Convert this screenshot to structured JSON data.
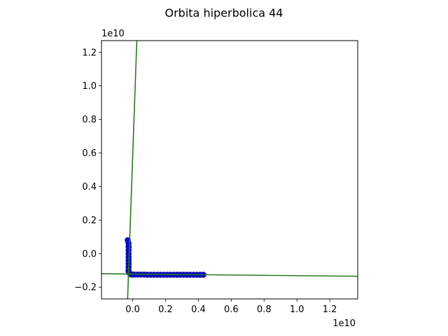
{
  "chart_data": {
    "type": "scatter",
    "title": "Orbita hiperbolica 44",
    "xlabel": "",
    "ylabel": "",
    "x_offset_label": "1e10",
    "y_offset_label": "1e10",
    "xlim": [
      -0.19,
      1.37
    ],
    "ylim": [
      -0.27,
      1.27
    ],
    "x_ticks": [
      0.0,
      0.2,
      0.4,
      0.6,
      0.8,
      1.0,
      1.2
    ],
    "x_tick_labels": [
      "0.0",
      "0.2",
      "0.4",
      "0.6",
      "0.8",
      "1.0",
      "1.2"
    ],
    "y_ticks": [
      -0.2,
      0.0,
      0.2,
      0.4,
      0.6,
      0.8,
      1.0,
      1.2
    ],
    "y_tick_labels": [
      "−0.2",
      "0.0",
      "0.2",
      "0.4",
      "0.6",
      "0.8",
      "1.0",
      "1.2"
    ],
    "grid": false,
    "colors": {
      "points": "#0000cc",
      "point_edge": "#1f1fa0",
      "line": "#2a7a1e",
      "line_dark": "#1e5a10"
    },
    "series": [
      {
        "values": {
          "x": [
            -0.03,
            -0.025,
            -0.025,
            -0.025,
            -0.025,
            -0.025,
            -0.025,
            -0.025,
            -0.025,
            -0.025,
            -0.025,
            -0.02,
            -0.015,
            -0.005,
            0.01,
            0.03,
            0.05,
            0.07,
            0.09,
            0.11,
            0.13,
            0.15,
            0.17,
            0.19,
            0.21,
            0.23,
            0.25,
            0.27,
            0.29,
            0.31,
            0.33,
            0.35,
            0.37,
            0.39,
            0.41,
            0.43
          ],
          "y": [
            0.08,
            0.06,
            0.04,
            0.02,
            0.0,
            -0.02,
            -0.04,
            -0.06,
            -0.08,
            -0.1,
            -0.105,
            -0.115,
            -0.122,
            -0.125,
            -0.125,
            -0.125,
            -0.125,
            -0.125,
            -0.126,
            -0.126,
            -0.126,
            -0.126,
            -0.126,
            -0.126,
            -0.126,
            -0.126,
            -0.126,
            -0.126,
            -0.126,
            -0.126,
            -0.126,
            -0.126,
            -0.126,
            -0.126,
            -0.126,
            -0.126
          ]
        }
      }
    ],
    "lines": [
      {
        "x": [
          -0.031,
          0.025
        ],
        "y": [
          -0.27,
          1.27
        ]
      },
      {
        "x": [
          -0.19,
          1.37
        ],
        "y": [
          -0.12,
          -0.135
        ]
      }
    ]
  }
}
